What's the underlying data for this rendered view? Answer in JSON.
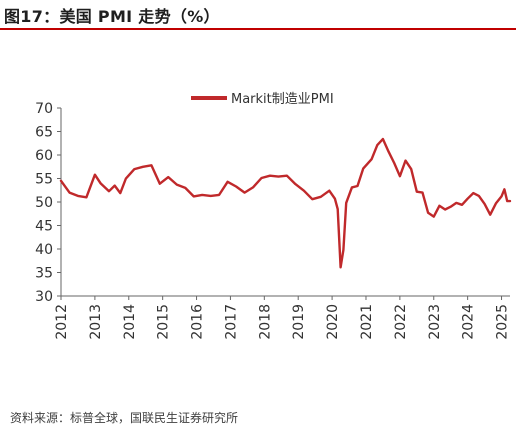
{
  "header": {
    "title": "图17：美国 PMI 走势（%）"
  },
  "footer": {
    "source": "资料来源：标普全球，国联民生证券研究所"
  },
  "colors": {
    "series": "#c0292b",
    "title_rule": "#c00000",
    "axis": "#666666",
    "text": "#333333"
  },
  "chart_data": {
    "type": "line",
    "title": "",
    "xlabel": "",
    "ylabel": "",
    "ylim": [
      30,
      70
    ],
    "yticks": [
      30,
      35,
      40,
      45,
      50,
      55,
      60,
      65,
      70
    ],
    "xlim": [
      "2012-01",
      "2025-04"
    ],
    "xticks": [
      "2012",
      "2013",
      "2014",
      "2015",
      "2016",
      "2017",
      "2018",
      "2019",
      "2020",
      "2021",
      "2022",
      "2023",
      "2024",
      "2025"
    ],
    "grid": false,
    "legend": "top-right",
    "series": [
      {
        "name": "Markit制造业PMI",
        "x": [
          "2012-01",
          "2012-04",
          "2012-07",
          "2012-10",
          "2013-01",
          "2013-03",
          "2013-06",
          "2013-08",
          "2013-10",
          "2013-12",
          "2014-03",
          "2014-06",
          "2014-09",
          "2014-12",
          "2015-03",
          "2015-06",
          "2015-09",
          "2015-12",
          "2016-03",
          "2016-06",
          "2016-09",
          "2016-12",
          "2017-03",
          "2017-06",
          "2017-09",
          "2017-12",
          "2018-03",
          "2018-06",
          "2018-09",
          "2018-12",
          "2019-03",
          "2019-06",
          "2019-09",
          "2019-12",
          "2020-02",
          "2020-03",
          "2020-04",
          "2020-05",
          "2020-06",
          "2020-08",
          "2020-10",
          "2020-12",
          "2021-03",
          "2021-05",
          "2021-07",
          "2021-09",
          "2021-11",
          "2022-01",
          "2022-03",
          "2022-05",
          "2022-07",
          "2022-09",
          "2022-11",
          "2023-01",
          "2023-03",
          "2023-05",
          "2023-07",
          "2023-09",
          "2023-11",
          "2024-01",
          "2024-03",
          "2024-05",
          "2024-07",
          "2024-09",
          "2024-11",
          "2025-01",
          "2025-02",
          "2025-03",
          "2025-04"
        ],
        "values": [
          54.5,
          52.0,
          51.3,
          51.0,
          55.8,
          54.0,
          52.3,
          53.5,
          51.9,
          55.0,
          57.0,
          57.5,
          57.8,
          53.9,
          55.3,
          53.7,
          53.0,
          51.2,
          51.5,
          51.3,
          51.5,
          54.3,
          53.3,
          52.0,
          53.1,
          55.1,
          55.6,
          55.4,
          55.6,
          53.8,
          52.4,
          50.6,
          51.1,
          52.4,
          50.7,
          48.5,
          36.1,
          39.8,
          49.8,
          53.1,
          53.4,
          57.1,
          59.1,
          62.1,
          63.4,
          60.7,
          58.3,
          55.5,
          58.8,
          57.0,
          52.2,
          52.0,
          47.7,
          46.9,
          49.2,
          48.4,
          49.0,
          49.8,
          49.4,
          50.7,
          51.9,
          51.3,
          49.6,
          47.3,
          49.7,
          51.2,
          52.7,
          50.2,
          50.2
        ]
      }
    ]
  }
}
